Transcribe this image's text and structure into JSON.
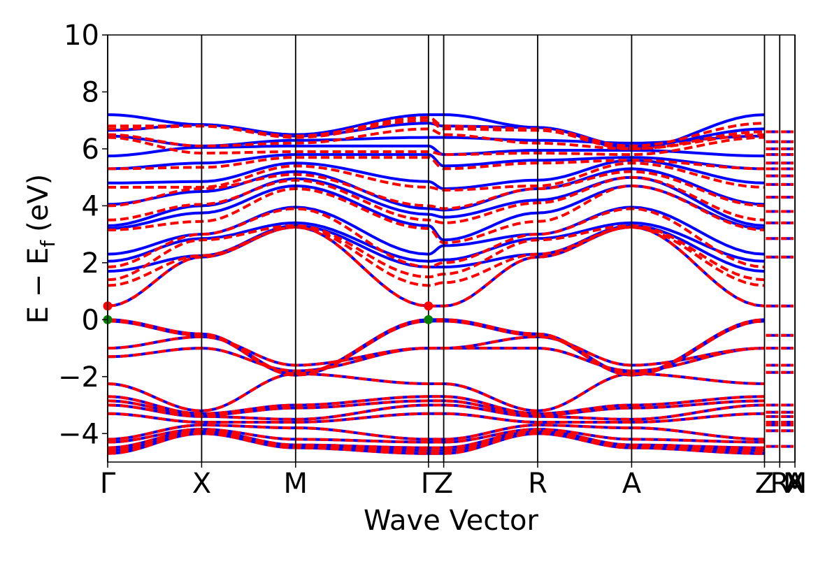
{
  "chart_data": {
    "type": "line",
    "xlabel": "Wave Vector",
    "ylabel_main": "E − E",
    "ylabel_sub": "f",
    "ylabel_unit": "(eV)",
    "ylim": [
      -5,
      10
    ],
    "yticks": [
      -4,
      -2,
      0,
      2,
      4,
      6,
      8,
      10
    ],
    "ytick_labels": [
      "−4",
      "−2",
      "0",
      "2",
      "4",
      "6",
      "8",
      "10"
    ],
    "grid": false,
    "kpoints": [
      {
        "label": "Γ",
        "x": 0.0
      },
      {
        "label": "X",
        "x": 0.5
      },
      {
        "label": "M",
        "x": 1.0
      },
      {
        "label": "Γ",
        "x": 1.707
      },
      {
        "label": "Z",
        "x": 1.788
      },
      {
        "label": "R",
        "x": 2.288
      },
      {
        "label": "A",
        "x": 2.788
      },
      {
        "label": "Z",
        "x": 3.495
      },
      {
        "label": "R",
        "x": 3.576
      },
      {
        "label": "X",
        "x": 3.657
      },
      {
        "label": "A",
        "x": 3.657
      },
      {
        "label": "M",
        "x": 3.657
      }
    ],
    "xlim": [
      0,
      3.657
    ],
    "series_style": [
      {
        "color": "#0000ff",
        "dash": "solid"
      },
      {
        "color": "#ff0000",
        "dash": "dashed"
      }
    ],
    "markers": [
      {
        "x": 0.0,
        "y": 0.48,
        "color": "#ff0000"
      },
      {
        "x": 0.0,
        "y": 0.0,
        "color": "#008000"
      },
      {
        "x": 1.707,
        "y": 0.48,
        "color": "#ff0000"
      },
      {
        "x": 1.707,
        "y": 0.0,
        "color": "#008000"
      }
    ],
    "valence_bands": [
      [
        0.0,
        -0.5,
        -1.9,
        0.0,
        0.0,
        -0.5,
        -1.9,
        0.0
      ],
      [
        -0.05,
        -0.55,
        -1.95,
        -0.05,
        -0.05,
        -0.55,
        -1.95,
        -0.05
      ],
      [
        -1.0,
        -0.6,
        -1.6,
        -1.0,
        -1.0,
        -0.6,
        -1.6,
        -1.0
      ],
      [
        -1.3,
        -1.0,
        -1.8,
        -1.0,
        -1.0,
        -1.0,
        -1.8,
        -1.0
      ],
      [
        -2.25,
        -3.2,
        -1.9,
        -2.25,
        -2.25,
        -3.2,
        -1.9,
        -2.25
      ],
      [
        -2.7,
        -3.3,
        -3.0,
        -2.7,
        -2.7,
        -3.3,
        -3.0,
        -2.7
      ],
      [
        -2.85,
        -3.35,
        -3.1,
        -2.85,
        -2.85,
        -3.35,
        -3.1,
        -2.85
      ],
      [
        -3.0,
        -3.4,
        -3.5,
        -3.0,
        -3.0,
        -3.4,
        -3.5,
        -3.0
      ],
      [
        -3.3,
        -3.6,
        -3.6,
        -3.3,
        -3.3,
        -3.6,
        -3.6,
        -3.3
      ],
      [
        -4.2,
        -3.7,
        -3.8,
        -4.2,
        -4.2,
        -3.7,
        -3.8,
        -4.2
      ],
      [
        -4.3,
        -3.85,
        -4.2,
        -4.3,
        -4.3,
        -3.85,
        -4.2,
        -4.3
      ],
      [
        -4.5,
        -3.9,
        -4.4,
        -4.5,
        -4.5,
        -3.9,
        -4.4,
        -4.5
      ],
      [
        -4.6,
        -3.95,
        -4.45,
        -4.6,
        -4.6,
        -3.95,
        -4.45,
        -4.6
      ],
      [
        -4.7,
        -4.0,
        -4.5,
        -4.7,
        -4.7,
        -4.0,
        -4.5,
        -4.7
      ]
    ],
    "conduction_bands_blue": [
      [
        0.48,
        2.2,
        3.25,
        0.48,
        0.48,
        2.2,
        3.25,
        0.48
      ],
      [
        1.7,
        2.25,
        3.3,
        1.85,
        1.85,
        2.3,
        3.3,
        1.7
      ],
      [
        2.05,
        2.85,
        3.4,
        2.05,
        2.1,
        2.85,
        3.4,
        2.05
      ],
      [
        2.3,
        3.0,
        3.95,
        2.3,
        2.6,
        3.0,
        3.95,
        2.3
      ],
      [
        3.2,
        3.75,
        4.7,
        3.3,
        2.8,
        3.75,
        4.7,
        3.2
      ],
      [
        3.3,
        4.0,
        4.95,
        3.7,
        3.6,
        4.2,
        5.0,
        3.3
      ],
      [
        4.05,
        4.5,
        5.2,
        3.9,
        3.85,
        4.6,
        5.3,
        4.05
      ],
      [
        4.8,
        4.85,
        5.5,
        4.85,
        4.6,
        4.9,
        5.6,
        4.8
      ],
      [
        5.3,
        5.5,
        5.8,
        5.8,
        5.4,
        5.6,
        5.7,
        5.3
      ],
      [
        5.75,
        6.05,
        6.1,
        6.1,
        5.8,
        5.95,
        5.95,
        5.75
      ],
      [
        6.45,
        6.1,
        6.3,
        6.4,
        6.4,
        6.3,
        6.2,
        6.45
      ],
      [
        6.65,
        6.85,
        6.45,
        6.9,
        6.8,
        6.75,
        6.1,
        6.7
      ],
      [
        7.2,
        6.85,
        6.5,
        7.2,
        7.2,
        6.75,
        6.0,
        7.2
      ]
    ],
    "conduction_bands_red": [
      [
        0.48,
        2.2,
        3.25,
        0.48,
        0.48,
        2.2,
        3.25,
        0.48
      ],
      [
        1.2,
        2.25,
        3.25,
        1.2,
        1.3,
        2.3,
        3.25,
        1.2
      ],
      [
        1.4,
        2.8,
        3.3,
        1.5,
        1.6,
        2.8,
        3.3,
        1.4
      ],
      [
        1.85,
        3.0,
        3.9,
        1.85,
        2.0,
        3.0,
        3.9,
        1.85
      ],
      [
        3.15,
        3.45,
        4.6,
        3.2,
        2.7,
        3.45,
        4.7,
        3.15
      ],
      [
        3.5,
        4.05,
        4.9,
        3.5,
        3.4,
        4.1,
        5.0,
        3.5
      ],
      [
        4.0,
        4.6,
        5.1,
        4.0,
        3.9,
        4.6,
        5.2,
        4.0
      ],
      [
        4.65,
        4.65,
        5.4,
        4.65,
        4.55,
        4.7,
        5.5,
        4.65
      ],
      [
        5.3,
        5.35,
        5.7,
        5.7,
        5.3,
        5.5,
        5.6,
        5.3
      ],
      [
        6.4,
        5.85,
        5.9,
        5.9,
        5.8,
        5.85,
        5.8,
        6.4
      ],
      [
        6.5,
        6.1,
        6.2,
        6.7,
        6.5,
        6.2,
        6.0,
        6.5
      ],
      [
        6.7,
        6.8,
        6.4,
        7.0,
        6.7,
        6.65,
        6.0,
        6.6
      ],
      [
        6.8,
        6.8,
        6.45,
        7.1,
        6.8,
        6.7,
        6.1,
        6.9
      ]
    ],
    "right_segment_levels": [
      6.6,
      6.25,
      6.0,
      5.8,
      5.5,
      5.3,
      5.05,
      4.75,
      4.3,
      3.8,
      3.4,
      2.85,
      2.2,
      0.48,
      -0.55,
      -1.0,
      -1.6,
      -1.85,
      -3.0,
      -3.25,
      -3.4,
      -3.6,
      -3.7,
      -3.9,
      -4.45
    ]
  }
}
